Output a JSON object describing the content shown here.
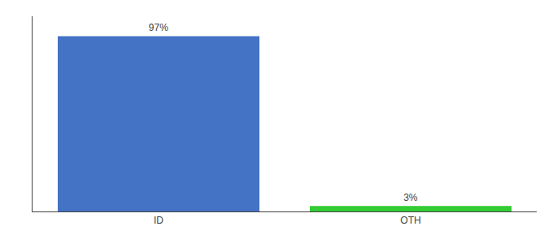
{
  "chart_data": {
    "type": "bar",
    "categories": [
      "ID",
      "OTH"
    ],
    "values": [
      97,
      3
    ],
    "value_labels": [
      "97%",
      "3%"
    ],
    "colors": [
      "#4472c4",
      "#33cc33"
    ],
    "ylim": [
      0,
      108
    ],
    "yticks": [],
    "data_labels": true,
    "tick_labels": "x",
    "grid": false
  }
}
